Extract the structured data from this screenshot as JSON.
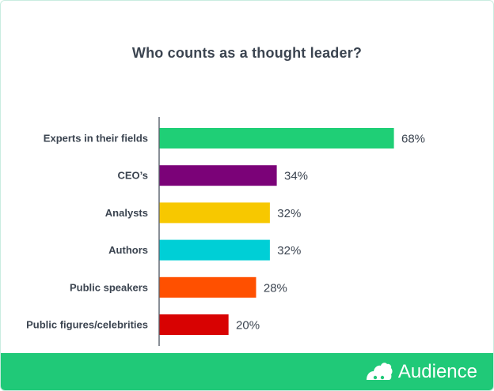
{
  "chart_data": {
    "type": "bar",
    "orientation": "horizontal",
    "title": "Who counts as a thought leader?",
    "categories": [
      "Experts in their fields",
      "CEO’s",
      "Analysts",
      "Authors",
      "Public speakers",
      "Public figures/celebrities"
    ],
    "values": [
      68,
      34,
      32,
      32,
      28,
      20
    ],
    "value_labels": [
      "68%",
      "34%",
      "32%",
      "32%",
      "28%",
      "20%"
    ],
    "colors": [
      "#1fcf76",
      "#7b0278",
      "#f7c800",
      "#00cfd6",
      "#ff5000",
      "#d80202"
    ],
    "xlim": [
      0,
      100
    ],
    "grid": false,
    "legend": "none"
  },
  "footer": {
    "brand_name": "Audience",
    "logo_icon": "audience-logo-icon",
    "background": "#20c978"
  }
}
